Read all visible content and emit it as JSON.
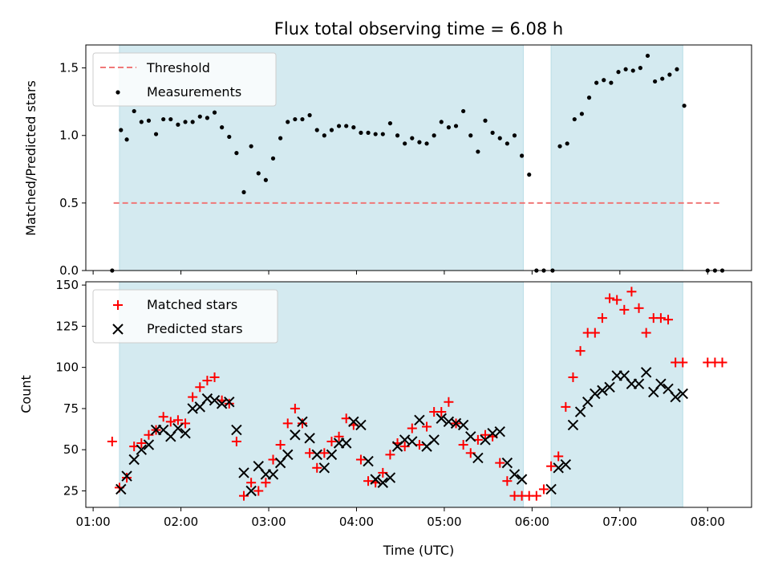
{
  "chart_data": {
    "title": "Flux total observing time = 6.08 h",
    "xlabel": "Time (UTC)",
    "x_ticks": [
      "01:00",
      "02:00",
      "03:00",
      "04:00",
      "05:00",
      "06:00",
      "07:00",
      "08:00"
    ],
    "xlim": [
      "00:55",
      "08:30"
    ],
    "observing_intervals": [
      [
        "01:18",
        "05:54"
      ],
      [
        "06:13",
        "07:43"
      ]
    ],
    "shade_color": "#d4eaf0",
    "top_panel": {
      "type": "scatter",
      "ylabel": "Matched/Predicted stars",
      "ylim": [
        0,
        1.67
      ],
      "y_ticks": [
        "0.0",
        "0.5",
        "1.0",
        "1.5"
      ],
      "legend": {
        "position": "top-left",
        "entries": [
          "Threshold",
          "Measurements"
        ]
      },
      "threshold": {
        "name": "Threshold",
        "value": 0.5,
        "x_range": [
          "01:14",
          "08:10"
        ],
        "color": "#f07878"
      },
      "measurements": {
        "name": "Measurements",
        "color": "#000000",
        "x": [
          "01:13",
          "01:19",
          "01:23",
          "01:28",
          "01:33",
          "01:38",
          "01:43",
          "01:48",
          "01:53",
          "01:58",
          "02:03",
          "02:08",
          "02:13",
          "02:18",
          "02:23",
          "02:28",
          "02:33",
          "02:38",
          "02:43",
          "02:48",
          "02:53",
          "02:58",
          "03:03",
          "03:08",
          "03:13",
          "03:18",
          "03:23",
          "03:28",
          "03:33",
          "03:38",
          "03:43",
          "03:48",
          "03:53",
          "03:58",
          "04:03",
          "04:08",
          "04:13",
          "04:18",
          "04:23",
          "04:28",
          "04:33",
          "04:38",
          "04:43",
          "04:48",
          "04:53",
          "04:58",
          "05:03",
          "05:08",
          "05:13",
          "05:18",
          "05:23",
          "05:28",
          "05:33",
          "05:38",
          "05:43",
          "05:48",
          "05:53",
          "05:58",
          "06:03",
          "06:08",
          "06:14",
          "06:19",
          "06:24",
          "06:29",
          "06:34",
          "06:39",
          "06:44",
          "06:49",
          "06:54",
          "06:59",
          "07:04",
          "07:09",
          "07:14",
          "07:19",
          "07:24",
          "07:29",
          "07:34",
          "07:39",
          "07:44",
          "08:00",
          "08:05",
          "08:10"
        ],
        "y": [
          0.0,
          1.04,
          0.97,
          1.18,
          1.1,
          1.11,
          1.01,
          1.12,
          1.12,
          1.08,
          1.1,
          1.1,
          1.14,
          1.13,
          1.17,
          1.06,
          0.99,
          0.87,
          0.58,
          0.92,
          0.72,
          0.67,
          0.83,
          0.98,
          1.1,
          1.12,
          1.12,
          1.15,
          1.04,
          1.0,
          1.04,
          1.07,
          1.07,
          1.06,
          1.02,
          1.02,
          1.01,
          1.01,
          1.09,
          1.0,
          0.94,
          0.98,
          0.95,
          0.94,
          1.0,
          1.1,
          1.06,
          1.07,
          1.18,
          1.0,
          0.88,
          1.11,
          1.02,
          0.98,
          0.94,
          1.0,
          0.85,
          0.71,
          0.0,
          0.0,
          0.0,
          0.92,
          0.94,
          1.12,
          1.16,
          1.28,
          1.39,
          1.41,
          1.39,
          1.47,
          1.49,
          1.48,
          1.5,
          1.59,
          1.4,
          1.42,
          1.45,
          1.49,
          1.22,
          0.0,
          0.0,
          0.0
        ]
      }
    },
    "bottom_panel": {
      "type": "scatter",
      "ylabel": "Count",
      "ylim": [
        15,
        152
      ],
      "y_ticks": [
        "25",
        "50",
        "75",
        "100",
        "125",
        "150"
      ],
      "legend": {
        "position": "top-left",
        "entries": [
          "Matched stars",
          "Predicted stars"
        ]
      },
      "series": [
        {
          "name": "Matched stars",
          "marker": "+",
          "color": "#ff0000",
          "x": [
            "01:13",
            "01:18",
            "01:23",
            "01:28",
            "01:33",
            "01:38",
            "01:43",
            "01:48",
            "01:53",
            "01:58",
            "02:03",
            "02:08",
            "02:13",
            "02:18",
            "02:23",
            "02:28",
            "02:33",
            "02:38",
            "02:43",
            "02:48",
            "02:53",
            "02:58",
            "03:03",
            "03:08",
            "03:13",
            "03:18",
            "03:23",
            "03:28",
            "03:33",
            "03:38",
            "03:43",
            "03:48",
            "03:53",
            "03:58",
            "04:03",
            "04:08",
            "04:13",
            "04:18",
            "04:23",
            "04:28",
            "04:33",
            "04:38",
            "04:43",
            "04:48",
            "04:53",
            "04:58",
            "05:03",
            "05:08",
            "05:13",
            "05:18",
            "05:23",
            "05:28",
            "05:33",
            "05:38",
            "05:43",
            "05:48",
            "05:53",
            "05:58",
            "06:03",
            "06:08",
            "06:13",
            "06:18",
            "06:23",
            "06:28",
            "06:33",
            "06:38",
            "06:43",
            "06:48",
            "06:53",
            "06:58",
            "07:03",
            "07:08",
            "07:13",
            "07:18",
            "07:23",
            "07:28",
            "07:33",
            "07:38",
            "07:43",
            "08:00",
            "08:05",
            "08:10"
          ],
          "y": [
            55,
            27,
            33,
            52,
            54,
            59,
            62,
            70,
            67,
            68,
            66,
            82,
            88,
            92,
            94,
            80,
            78,
            55,
            22,
            30,
            25,
            30,
            44,
            53,
            66,
            75,
            66,
            48,
            39,
            48,
            55,
            58,
            69,
            65,
            44,
            31,
            30,
            36,
            47,
            54,
            52,
            63,
            53,
            64,
            73,
            73,
            79,
            66,
            53,
            48,
            56,
            59,
            58,
            42,
            31,
            22,
            22,
            22,
            22,
            26,
            40,
            46,
            76,
            94,
            110,
            121,
            121,
            130,
            142,
            141,
            135,
            146,
            136,
            121,
            130,
            130,
            129,
            103,
            103,
            103,
            103,
            103
          ]
        },
        {
          "name": "Predicted stars",
          "marker": "x",
          "color": "#000000",
          "x": [
            "01:19",
            "01:23",
            "01:28",
            "01:33",
            "01:38",
            "01:43",
            "01:48",
            "01:53",
            "01:58",
            "02:03",
            "02:08",
            "02:13",
            "02:18",
            "02:23",
            "02:28",
            "02:33",
            "02:38",
            "02:43",
            "02:48",
            "02:53",
            "02:58",
            "03:03",
            "03:08",
            "03:13",
            "03:18",
            "03:23",
            "03:28",
            "03:33",
            "03:38",
            "03:43",
            "03:48",
            "03:53",
            "03:58",
            "04:03",
            "04:08",
            "04:13",
            "04:18",
            "04:23",
            "04:28",
            "04:33",
            "04:38",
            "04:43",
            "04:48",
            "04:53",
            "04:58",
            "05:03",
            "05:08",
            "05:13",
            "05:18",
            "05:23",
            "05:28",
            "05:33",
            "05:38",
            "05:43",
            "05:48",
            "05:53",
            "06:13",
            "06:18",
            "06:23",
            "06:28",
            "06:33",
            "06:38",
            "06:43",
            "06:48",
            "06:53",
            "06:58",
            "07:03",
            "07:08",
            "07:13",
            "07:18",
            "07:23",
            "07:28",
            "07:33",
            "07:38",
            "07:43"
          ],
          "y": [
            26,
            34,
            44,
            50,
            53,
            62,
            62,
            58,
            63,
            60,
            75,
            76,
            81,
            80,
            78,
            79,
            62,
            36,
            25,
            40,
            35,
            35,
            42,
            47,
            59,
            67,
            57,
            47,
            39,
            47,
            54,
            54,
            67,
            65,
            43,
            32,
            30,
            33,
            52,
            56,
            55,
            68,
            52,
            56,
            69,
            67,
            66,
            65,
            58,
            45,
            56,
            60,
            61,
            42,
            35,
            32,
            26,
            39,
            41,
            65,
            73,
            79,
            84,
            86,
            88,
            95,
            95,
            90,
            90,
            97,
            85,
            90,
            87,
            82,
            84
          ]
        }
      ]
    }
  }
}
